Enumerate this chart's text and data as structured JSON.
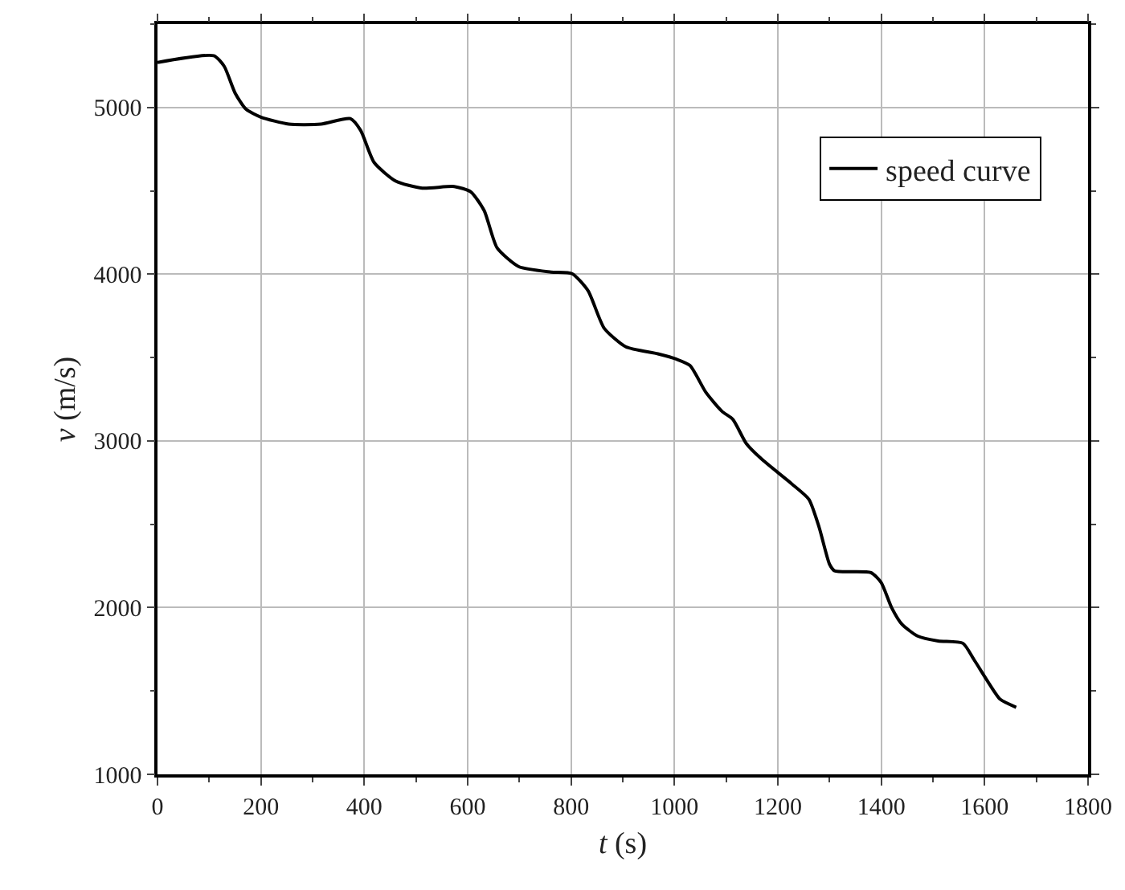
{
  "chart_data": {
    "type": "line",
    "xlabel": "t (s)",
    "ylabel": "v (m/s)",
    "xlim": [
      0,
      1800
    ],
    "ylim": [
      1000,
      5500
    ],
    "xticks": [
      0,
      200,
      400,
      600,
      800,
      1000,
      1200,
      1400,
      1600,
      1800
    ],
    "yticks": [
      1000,
      2000,
      3000,
      4000,
      5000
    ],
    "grid": true,
    "legend": "top right",
    "marker": "none",
    "line_style": "solid",
    "x": [
      0,
      109,
      129,
      150,
      171,
      200,
      254,
      316,
      373,
      393,
      419,
      461,
      512,
      574,
      606,
      632,
      657,
      699,
      761,
      802,
      833,
      864,
      906,
      968,
      1004,
      1030,
      1061,
      1092,
      1113,
      1139,
      1170,
      1227,
      1260,
      1280,
      1300,
      1310,
      1380,
      1400,
      1420,
      1440,
      1470,
      1510,
      1558,
      1579,
      1605,
      1630,
      1661
    ],
    "series": [
      {
        "name": "speed curve",
        "color": "#000000",
        "values": [
          5270,
          5310,
          5247,
          5087,
          4990,
          4942,
          4900,
          4900,
          4933,
          4862,
          4670,
          4558,
          4516,
          4526,
          4494,
          4381,
          4157,
          4045,
          4013,
          4003,
          3900,
          3676,
          3564,
          3522,
          3490,
          3452,
          3290,
          3177,
          3129,
          2984,
          2887,
          2742,
          2650,
          2480,
          2260,
          2220,
          2210,
          2150,
          2000,
          1900,
          1830,
          1800,
          1786,
          1690,
          1562,
          1450,
          1402
        ]
      }
    ]
  }
}
